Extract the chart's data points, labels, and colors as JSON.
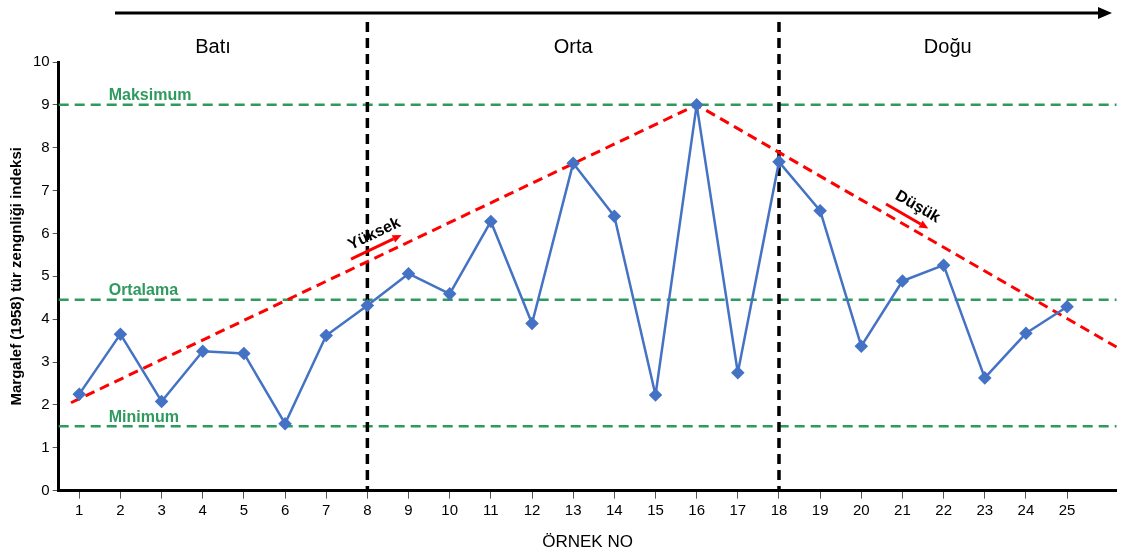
{
  "chart_data": {
    "type": "line",
    "xlabel": "ÖRNEK NO",
    "ylabel": "Margalef (1958) tür zengnliği indeksi",
    "x": [
      1,
      2,
      3,
      4,
      5,
      6,
      7,
      8,
      9,
      10,
      11,
      12,
      13,
      14,
      15,
      16,
      17,
      18,
      19,
      20,
      21,
      22,
      23,
      24,
      25
    ],
    "xlim": [
      0.5,
      26.2
    ],
    "xticks": [
      1,
      2,
      3,
      4,
      5,
      6,
      7,
      8,
      9,
      10,
      11,
      12,
      13,
      14,
      15,
      16,
      17,
      18,
      19,
      20,
      21,
      22,
      23,
      24,
      25
    ],
    "ylim": [
      0,
      10
    ],
    "yticks": [
      0,
      1,
      2,
      3,
      4,
      5,
      6,
      7,
      8,
      9,
      10
    ],
    "series": [
      {
        "color": "#4472c4",
        "marker": "diamond",
        "values": [
          2.25,
          3.65,
          2.08,
          3.25,
          3.2,
          1.56,
          3.62,
          4.32,
          5.06,
          4.59,
          6.28,
          3.9,
          7.64,
          6.4,
          2.23,
          9.0,
          2.75,
          7.67,
          6.53,
          3.37,
          4.89,
          5.26,
          2.63,
          3.67,
          4.29
        ]
      },
      {
        "type": "line",
        "color": "#ff0000",
        "line_style": "dashed",
        "marker": "none",
        "x": [
          0.8,
          16,
          26.2
        ],
        "values": [
          2.05,
          9.0,
          3.35
        ]
      }
    ],
    "ref_lines": [
      {
        "axis": "y",
        "value": 9,
        "label": "Maksimum",
        "color": "#2e9a5e",
        "line_style": "dashed"
      },
      {
        "axis": "y",
        "value": 4.45,
        "label": "Ortalama",
        "color": "#2e9a5e",
        "line_style": "dashed"
      },
      {
        "axis": "y",
        "value": 1.5,
        "label": "Minimum",
        "color": "#2e9a5e",
        "line_style": "dashed"
      },
      {
        "axis": "x",
        "value": 8,
        "label": null,
        "color": "#000000",
        "line_style": "dashed"
      },
      {
        "axis": "x",
        "value": 18,
        "label": null,
        "color": "#000000",
        "line_style": "dashed"
      }
    ],
    "annotations": [
      "Batı",
      "Orta",
      "Doğu",
      "Yüksek",
      "Düşük"
    ],
    "grid": false,
    "legend": false
  }
}
